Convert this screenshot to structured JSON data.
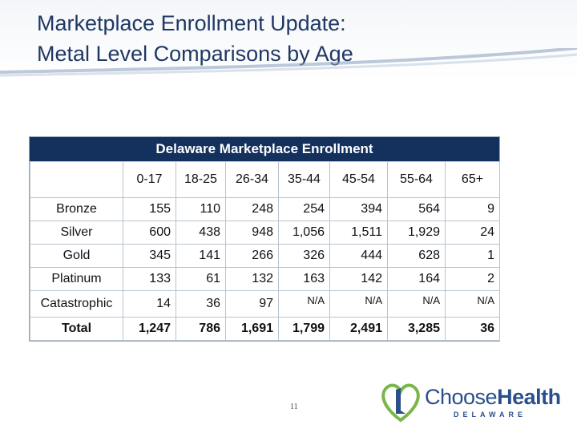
{
  "slide": {
    "title_line1": "Marketplace Enrollment Update:",
    "title_line2": "Metal Level Comparisons by Age",
    "page_number": "11"
  },
  "table": {
    "header": "Delaware Marketplace Enrollment",
    "columns": [
      "",
      "0-17",
      "18-25",
      "26-34",
      "35-44",
      "45-54",
      "55-64",
      "65+"
    ],
    "rows": [
      {
        "label": "Bronze",
        "values": [
          "155",
          "110",
          "248",
          "254",
          "394",
          "564",
          "9"
        ]
      },
      {
        "label": "Silver",
        "values": [
          "600",
          "438",
          "948",
          "1,056",
          "1,511",
          "1,929",
          "24"
        ]
      },
      {
        "label": "Gold",
        "values": [
          "345",
          "141",
          "266",
          "326",
          "444",
          "628",
          "1"
        ]
      },
      {
        "label": "Platinum",
        "values": [
          "133",
          "61",
          "132",
          "163",
          "142",
          "164",
          "2"
        ]
      },
      {
        "label": "Catastrophic",
        "values": [
          "14",
          "36",
          "97",
          "N/A",
          "N/A",
          "N/A",
          "N/A"
        ]
      },
      {
        "label": "Total",
        "values": [
          "1,247",
          "786",
          "1,691",
          "1,799",
          "2,491",
          "3,285",
          "36"
        ]
      }
    ]
  },
  "logo": {
    "name_regular": "Choose",
    "name_bold": "Health",
    "subtitle": "DELAWARE"
  },
  "colors": {
    "title": "#1f3864",
    "table_header_bg": "#14305c",
    "logo_blue": "#2b4e8c",
    "logo_green": "#7ab648"
  }
}
